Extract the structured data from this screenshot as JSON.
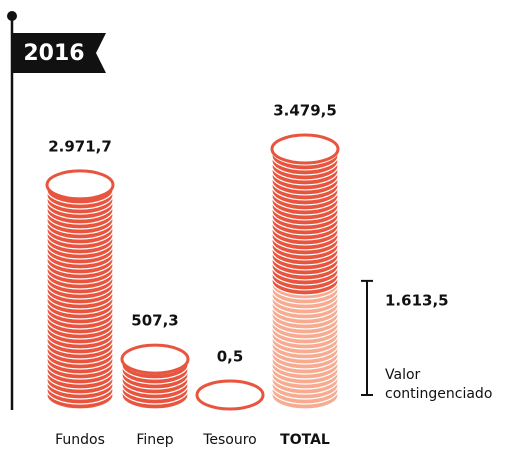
{
  "chart_data": {
    "type": "bar",
    "title": "2016",
    "categories": [
      "Fundos",
      "Finep",
      "Tesouro",
      "TOTAL"
    ],
    "values": [
      2971.7,
      507.3,
      0.5,
      3479.5
    ],
    "value_labels": [
      "2.971,7",
      "507,3",
      "0,5",
      "3.479,5"
    ],
    "color": "#e8553e",
    "annotation": {
      "value": 1613.5,
      "value_label": "1.613,5",
      "text": "Valor contingenciado",
      "color": "#f7ab91"
    }
  }
}
